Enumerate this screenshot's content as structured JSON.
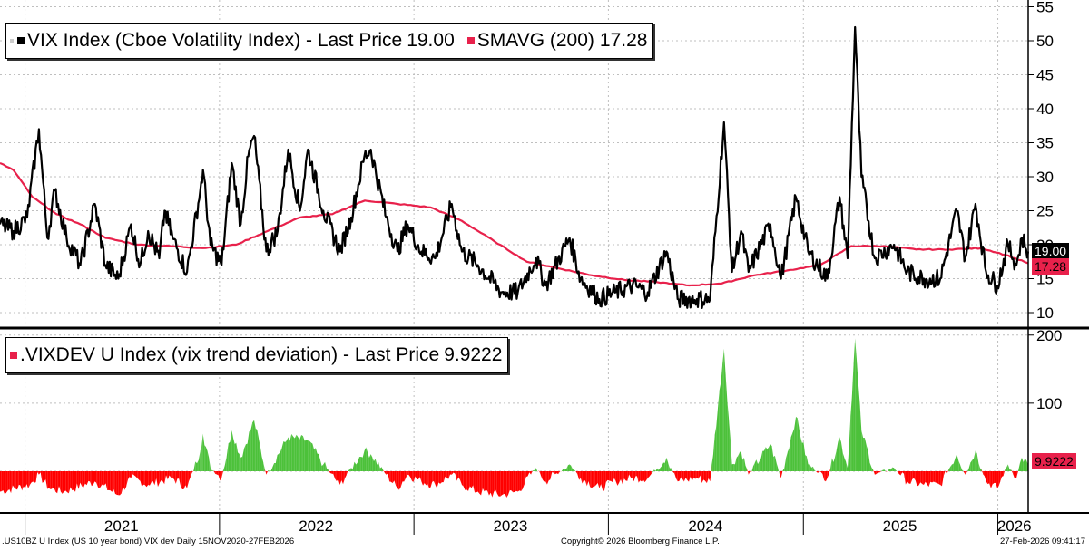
{
  "chart_data": [
    {
      "type": "line",
      "title": "VIX Index (Cboe Volatility Index) - Last Price 19.00",
      "y_ticks": [
        10,
        15,
        20,
        25,
        30,
        35,
        40,
        45,
        50,
        55
      ],
      "ylim": [
        8,
        56
      ],
      "grid": true,
      "legend_position": "top-left",
      "series": [
        {
          "name": "VIX Index (Cboe Volatility Index)",
          "label": "VIX Index (Cboe Volatility Index) - Last Price",
          "last_value_text": "19.00",
          "color": "#000000",
          "points": [
            [
              "2020-11-15",
              23
            ],
            [
              "2020-12-10",
              22
            ],
            [
              "2021-01-05",
              24
            ],
            [
              "2021-01-27",
              37
            ],
            [
              "2021-02-12",
              21
            ],
            [
              "2021-02-26",
              28
            ],
            [
              "2021-03-20",
              21
            ],
            [
              "2021-04-15",
              17
            ],
            [
              "2021-05-12",
              26
            ],
            [
              "2021-06-01",
              17
            ],
            [
              "2021-06-25",
              15
            ],
            [
              "2021-07-19",
              23
            ],
            [
              "2021-08-05",
              17
            ],
            [
              "2021-08-20",
              22
            ],
            [
              "2021-09-10",
              18
            ],
            [
              "2021-09-20",
              25
            ],
            [
              "2021-10-05",
              21
            ],
            [
              "2021-11-01",
              16
            ],
            [
              "2021-11-26",
              28
            ],
            [
              "2021-12-01",
              31
            ],
            [
              "2021-12-15",
              20
            ],
            [
              "2022-01-05",
              17
            ],
            [
              "2022-01-24",
              32
            ],
            [
              "2022-02-10",
              23
            ],
            [
              "2022-02-24",
              33
            ],
            [
              "2022-03-07",
              36
            ],
            [
              "2022-03-30",
              19
            ],
            [
              "2022-04-20",
              22
            ],
            [
              "2022-05-10",
              34
            ],
            [
              "2022-06-01",
              25
            ],
            [
              "2022-06-16",
              34
            ],
            [
              "2022-07-15",
              25
            ],
            [
              "2022-08-15",
              19
            ],
            [
              "2022-09-05",
              24
            ],
            [
              "2022-09-30",
              33
            ],
            [
              "2022-10-12",
              34
            ],
            [
              "2022-11-10",
              24
            ],
            [
              "2022-12-01",
              19
            ],
            [
              "2022-12-20",
              23
            ],
            [
              "2023-01-15",
              19
            ],
            [
              "2023-02-10",
              18
            ],
            [
              "2023-03-13",
              26
            ],
            [
              "2023-04-01",
              19
            ],
            [
              "2023-05-01",
              17
            ],
            [
              "2023-06-15",
              13
            ],
            [
              "2023-07-15",
              13
            ],
            [
              "2023-08-18",
              18
            ],
            [
              "2023-09-05",
              14
            ],
            [
              "2023-10-20",
              21
            ],
            [
              "2023-11-10",
              15
            ],
            [
              "2023-12-15",
              12
            ],
            [
              "2024-01-15",
              13
            ],
            [
              "2024-02-15",
              14
            ],
            [
              "2024-03-15",
              13
            ],
            [
              "2024-04-19",
              19
            ],
            [
              "2024-05-10",
              12
            ],
            [
              "2024-06-15",
              12
            ],
            [
              "2024-07-10",
              12
            ],
            [
              "2024-08-05",
              38
            ],
            [
              "2024-08-20",
              16
            ],
            [
              "2024-09-06",
              22
            ],
            [
              "2024-09-20",
              16
            ],
            [
              "2024-10-31",
              23
            ],
            [
              "2024-11-20",
              15
            ],
            [
              "2024-12-18",
              27
            ],
            [
              "2025-01-10",
              19
            ],
            [
              "2025-02-15",
              15
            ],
            [
              "2025-03-10",
              27
            ],
            [
              "2025-03-25",
              18
            ],
            [
              "2025-04-08",
              52
            ],
            [
              "2025-04-20",
              30
            ],
            [
              "2025-05-15",
              18
            ],
            [
              "2025-06-20",
              20
            ],
            [
              "2025-07-15",
              16
            ],
            [
              "2025-08-15",
              15
            ],
            [
              "2025-09-15",
              15
            ],
            [
              "2025-10-16",
              25
            ],
            [
              "2025-11-01",
              18
            ],
            [
              "2025-11-20",
              26
            ],
            [
              "2025-12-10",
              16
            ],
            [
              "2025-12-31",
              14
            ],
            [
              "2026-01-20",
              20
            ],
            [
              "2026-02-05",
              17
            ],
            [
              "2026-02-15",
              21
            ],
            [
              "2026-02-27",
              19
            ]
          ]
        },
        {
          "name": "SMAVG (200)",
          "label": "SMAVG (200)",
          "last_value_text": "17.28",
          "color": "#e8214b",
          "points": [
            [
              "2020-11-15",
              32
            ],
            [
              "2020-12-10",
              31
            ],
            [
              "2021-01-15",
              27
            ],
            [
              "2021-03-01",
              24.5
            ],
            [
              "2021-04-15",
              23
            ],
            [
              "2021-06-01",
              21
            ],
            [
              "2021-08-01",
              20
            ],
            [
              "2021-10-01",
              19.8
            ],
            [
              "2021-12-01",
              19.5
            ],
            [
              "2022-02-01",
              20
            ],
            [
              "2022-04-01",
              22
            ],
            [
              "2022-06-01",
              24
            ],
            [
              "2022-08-01",
              24.5
            ],
            [
              "2022-10-01",
              26.5
            ],
            [
              "2022-12-01",
              26
            ],
            [
              "2023-02-01",
              25.5
            ],
            [
              "2023-04-01",
              23.5
            ],
            [
              "2023-06-01",
              20.5
            ],
            [
              "2023-08-01",
              17.5
            ],
            [
              "2023-10-01",
              16.5
            ],
            [
              "2023-12-01",
              15.5
            ],
            [
              "2024-02-01",
              14.8
            ],
            [
              "2024-04-01",
              14.5
            ],
            [
              "2024-06-01",
              14.0
            ],
            [
              "2024-08-01",
              14.3
            ],
            [
              "2024-10-01",
              15.5
            ],
            [
              "2024-12-01",
              16.2
            ],
            [
              "2025-02-01",
              17
            ],
            [
              "2025-04-01",
              19.8
            ],
            [
              "2025-06-01",
              19.8
            ],
            [
              "2025-08-01",
              19.3
            ],
            [
              "2025-10-01",
              19.3
            ],
            [
              "2025-12-01",
              19.5
            ],
            [
              "2026-01-15",
              18.5
            ],
            [
              "2026-02-27",
              17.28
            ]
          ]
        }
      ],
      "markers": [
        {
          "label": "19.00",
          "value": 19.0,
          "background": "#000000",
          "color": "#ffffff"
        },
        {
          "label": "17.28",
          "value": 17.28,
          "background": "#e8214b",
          "color": "#000000"
        }
      ]
    },
    {
      "type": "area",
      "title": ".VIXDEV U Index (vix trend deviation) - Last Price 9.9222",
      "y_ticks": [
        100,
        200
      ],
      "ylim": [
        -60,
        205
      ],
      "grid": true,
      "legend_position": "top-left",
      "series": [
        {
          "name": ".VIXDEV U Index (vix trend deviation)",
          "label": ".VIXDEV U Index (vix trend deviation) - Last Price",
          "last_value_text": "9.9222",
          "positive_color": "#4cc13a",
          "negative_color": "#ff0000",
          "points": [
            [
              "2020-11-15",
              -30
            ],
            [
              "2021-01-10",
              -20
            ],
            [
              "2021-01-27",
              -5
            ],
            [
              "2021-02-15",
              -25
            ],
            [
              "2021-03-15",
              -30
            ],
            [
              "2021-05-12",
              -15
            ],
            [
              "2021-06-25",
              -35
            ],
            [
              "2021-07-19",
              -10
            ],
            [
              "2021-08-20",
              -20
            ],
            [
              "2021-10-05",
              -10
            ],
            [
              "2021-11-01",
              -25
            ],
            [
              "2021-11-26",
              30
            ],
            [
              "2021-12-01",
              55
            ],
            [
              "2021-12-15",
              5
            ],
            [
              "2022-01-05",
              -10
            ],
            [
              "2022-01-24",
              60
            ],
            [
              "2022-02-10",
              20
            ],
            [
              "2022-03-07",
              75
            ],
            [
              "2022-03-30",
              -5
            ],
            [
              "2022-05-10",
              50
            ],
            [
              "2022-06-16",
              45
            ],
            [
              "2022-07-15",
              10
            ],
            [
              "2022-08-15",
              -20
            ],
            [
              "2022-09-05",
              5
            ],
            [
              "2022-09-30",
              30
            ],
            [
              "2022-10-12",
              25
            ],
            [
              "2022-11-10",
              -5
            ],
            [
              "2022-12-01",
              -25
            ],
            [
              "2022-12-20",
              -5
            ],
            [
              "2023-01-15",
              -15
            ],
            [
              "2023-02-10",
              -20
            ],
            [
              "2023-03-13",
              -5
            ],
            [
              "2023-04-01",
              -20
            ],
            [
              "2023-05-01",
              -30
            ],
            [
              "2023-06-15",
              -35
            ],
            [
              "2023-07-15",
              -30
            ],
            [
              "2023-08-18",
              5
            ],
            [
              "2023-09-05",
              -15
            ],
            [
              "2023-10-20",
              10
            ],
            [
              "2023-11-10",
              -10
            ],
            [
              "2023-12-15",
              -25
            ],
            [
              "2024-01-15",
              -15
            ],
            [
              "2024-02-15",
              -10
            ],
            [
              "2024-03-15",
              -10
            ],
            [
              "2024-04-19",
              20
            ],
            [
              "2024-05-10",
              -15
            ],
            [
              "2024-06-15",
              -10
            ],
            [
              "2024-07-10",
              -15
            ],
            [
              "2024-08-05",
              180
            ],
            [
              "2024-08-20",
              10
            ],
            [
              "2024-09-06",
              30
            ],
            [
              "2024-09-20",
              -5
            ],
            [
              "2024-10-31",
              40
            ],
            [
              "2024-11-20",
              -10
            ],
            [
              "2024-12-18",
              80
            ],
            [
              "2025-01-10",
              10
            ],
            [
              "2025-02-15",
              -10
            ],
            [
              "2025-03-10",
              50
            ],
            [
              "2025-03-25",
              5
            ],
            [
              "2025-04-08",
              195
            ],
            [
              "2025-04-20",
              60
            ],
            [
              "2025-05-15",
              -5
            ],
            [
              "2025-06-20",
              5
            ],
            [
              "2025-07-15",
              -15
            ],
            [
              "2025-08-15",
              -20
            ],
            [
              "2025-09-15",
              -20
            ],
            [
              "2025-10-16",
              25
            ],
            [
              "2025-11-01",
              -5
            ],
            [
              "2025-11-20",
              30
            ],
            [
              "2025-12-10",
              -15
            ],
            [
              "2025-12-31",
              -25
            ],
            [
              "2026-01-20",
              10
            ],
            [
              "2026-02-05",
              -10
            ],
            [
              "2026-02-15",
              20
            ],
            [
              "2026-02-27",
              9.92
            ]
          ]
        }
      ],
      "markers": [
        {
          "label": "9.9222",
          "value": 9.9222,
          "background": "#e8214b",
          "color": "#000000"
        }
      ]
    }
  ],
  "x_axis": {
    "labels": [
      {
        "text": "2021",
        "date": "2021-07-01"
      },
      {
        "text": "2022",
        "date": "2022-07-01"
      },
      {
        "text": "2023",
        "date": "2023-07-01"
      },
      {
        "text": "2024",
        "date": "2024-07-01"
      },
      {
        "text": "2025",
        "date": "2025-07-01"
      },
      {
        "text": "2026",
        "date": "2026-02-01"
      }
    ],
    "year_boundaries": [
      "2021-01-01",
      "2022-01-01",
      "2023-01-01",
      "2024-01-01",
      "2025-01-01",
      "2026-01-01"
    ],
    "range": [
      "2020-11-15",
      "2026-02-27"
    ]
  },
  "legends": {
    "top": {
      "vix_label": "VIX Index (Cboe Volatility Index) - Last Price",
      "vix_value": "19.00",
      "sma_label": "SMAVG (200)",
      "sma_value": "17.28"
    },
    "bottom": {
      "label": ".VIXDEV U Index (vix trend deviation) - Last Price",
      "value": "9.9222"
    }
  },
  "footer": {
    "left": ".US10BZ U Index (US 10 year bond) VIX dev Daily 15NOV2020-27FEB2026",
    "center": "Copyright© 2026 Bloomberg Finance L.P.",
    "right": "27-Feb-2026 09:41:17"
  },
  "colors": {
    "vix": "#000000",
    "sma": "#e8214b",
    "dev_positive": "#4cc13a",
    "dev_negative": "#ff0000",
    "separator": "#000000"
  }
}
